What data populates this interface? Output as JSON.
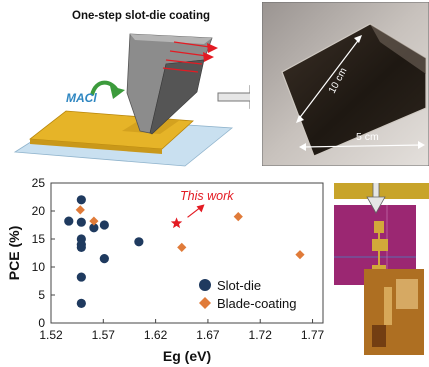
{
  "schematic": {
    "title": "One-step slot-die coating",
    "treatment_label": "MACl"
  },
  "photo": {
    "length_label": "10 cm",
    "width_label": "5 cm"
  },
  "chart_data": {
    "type": "scatter",
    "xlabel": "Eg (eV)",
    "ylabel": "PCE (%)",
    "xlim": [
      1.52,
      1.78
    ],
    "ylim": [
      0,
      25
    ],
    "xticks": [
      "1.52",
      "1.57",
      "1.62",
      "1.67",
      "1.72",
      "1.77"
    ],
    "yticks": [
      "0",
      "5",
      "10",
      "15",
      "20",
      "25"
    ],
    "legend_position": "bottom-right",
    "grid": false,
    "series": [
      {
        "name": "Slot-die",
        "color": "#1f3a5f",
        "marker": "circle",
        "points": [
          [
            1.537,
            18.2
          ],
          [
            1.549,
            22.0
          ],
          [
            1.549,
            18.0
          ],
          [
            1.549,
            15.0
          ],
          [
            1.549,
            14.0
          ],
          [
            1.549,
            13.5
          ],
          [
            1.549,
            8.2
          ],
          [
            1.549,
            3.5
          ],
          [
            1.561,
            17.0
          ],
          [
            1.571,
            17.5
          ],
          [
            1.571,
            11.5
          ],
          [
            1.604,
            14.5
          ]
        ]
      },
      {
        "name": "Blade-coating",
        "color": "#e07b39",
        "marker": "diamond",
        "points": [
          [
            1.548,
            20.2
          ],
          [
            1.561,
            18.2
          ],
          [
            1.645,
            13.5
          ],
          [
            1.699,
            19.0
          ],
          [
            1.758,
            12.2
          ]
        ]
      }
    ],
    "highlight": {
      "label": "This work",
      "color": "#e31b23",
      "marker": "star",
      "x": 1.64,
      "y": 17.8
    }
  }
}
